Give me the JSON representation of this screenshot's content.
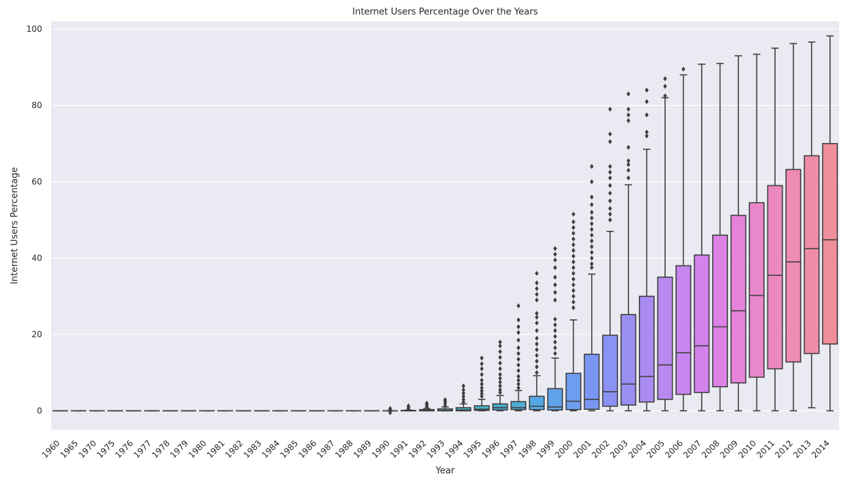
{
  "chart_data": {
    "type": "box",
    "title": "Internet Users Percentage Over the Years",
    "xlabel": "Year",
    "ylabel": "Internet Users Percentage",
    "ylim": [
      -5,
      102
    ],
    "yticks": [
      0,
      20,
      40,
      60,
      80,
      100
    ],
    "grid": true,
    "categories": [
      "1960",
      "1965",
      "1970",
      "1975",
      "1976",
      "1977",
      "1978",
      "1979",
      "1980",
      "1981",
      "1982",
      "1983",
      "1984",
      "1985",
      "1986",
      "1987",
      "1988",
      "1989",
      "1990",
      "1991",
      "1992",
      "1993",
      "1994",
      "1995",
      "1996",
      "1997",
      "1998",
      "1999",
      "2000",
      "2001",
      "2002",
      "2003",
      "2004",
      "2005",
      "2006",
      "2007",
      "2008",
      "2009",
      "2010",
      "2011",
      "2012",
      "2013",
      "2014"
    ],
    "colors": [
      "#f08f9c",
      "#f0909b",
      "#f1929a",
      "#f19299",
      "#f29398",
      "#f29596",
      "#f19794",
      "#f09a92",
      "#ed9e8e",
      "#e9a388",
      "#e2a87f",
      "#d9ad74",
      "#cdb26a",
      "#c0b562",
      "#b2b85a",
      "#a4bb54",
      "#94be4f",
      "#83c04e",
      "#4ab58b",
      "#4bb599",
      "#4db6a6",
      "#4ab5b2",
      "#48b3bd",
      "#47b1c6",
      "#4aafd0",
      "#4eacd9",
      "#55a8e2",
      "#60a3e9",
      "#6d9df0",
      "#7b97f3",
      "#8a92f4",
      "#9a8ef3",
      "#aa8bf2",
      "#b889f0",
      "#c686ee",
      "#d283eb",
      "#dd82e5",
      "#e583da",
      "#e987cc",
      "#ec89bf",
      "#ee8bb2",
      "#ef8da8",
      "#f08f9c"
    ],
    "boxes": [
      {
        "year": "1960",
        "min": 0,
        "q1": 0,
        "median": 0,
        "q3": 0,
        "max": 0,
        "outliers": []
      },
      {
        "year": "1965",
        "min": 0,
        "q1": 0,
        "median": 0,
        "q3": 0,
        "max": 0,
        "outliers": []
      },
      {
        "year": "1970",
        "min": 0,
        "q1": 0,
        "median": 0,
        "q3": 0,
        "max": 0,
        "outliers": []
      },
      {
        "year": "1975",
        "min": 0,
        "q1": 0,
        "median": 0,
        "q3": 0,
        "max": 0,
        "outliers": []
      },
      {
        "year": "1976",
        "min": 0,
        "q1": 0,
        "median": 0,
        "q3": 0,
        "max": 0,
        "outliers": []
      },
      {
        "year": "1977",
        "min": 0,
        "q1": 0,
        "median": 0,
        "q3": 0,
        "max": 0,
        "outliers": []
      },
      {
        "year": "1978",
        "min": 0,
        "q1": 0,
        "median": 0,
        "q3": 0,
        "max": 0,
        "outliers": []
      },
      {
        "year": "1979",
        "min": 0,
        "q1": 0,
        "median": 0,
        "q3": 0,
        "max": 0,
        "outliers": []
      },
      {
        "year": "1980",
        "min": 0,
        "q1": 0,
        "median": 0,
        "q3": 0,
        "max": 0,
        "outliers": []
      },
      {
        "year": "1981",
        "min": 0,
        "q1": 0,
        "median": 0,
        "q3": 0,
        "max": 0,
        "outliers": []
      },
      {
        "year": "1982",
        "min": 0,
        "q1": 0,
        "median": 0,
        "q3": 0,
        "max": 0,
        "outliers": []
      },
      {
        "year": "1983",
        "min": 0,
        "q1": 0,
        "median": 0,
        "q3": 0,
        "max": 0,
        "outliers": []
      },
      {
        "year": "1984",
        "min": 0,
        "q1": 0,
        "median": 0,
        "q3": 0,
        "max": 0,
        "outliers": []
      },
      {
        "year": "1985",
        "min": 0,
        "q1": 0,
        "median": 0,
        "q3": 0,
        "max": 0,
        "outliers": []
      },
      {
        "year": "1986",
        "min": 0,
        "q1": 0,
        "median": 0,
        "q3": 0,
        "max": 0,
        "outliers": []
      },
      {
        "year": "1987",
        "min": 0,
        "q1": 0,
        "median": 0,
        "q3": 0,
        "max": 0,
        "outliers": []
      },
      {
        "year": "1988",
        "min": 0,
        "q1": 0,
        "median": 0,
        "q3": 0,
        "max": 0,
        "outliers": []
      },
      {
        "year": "1989",
        "min": 0,
        "q1": 0,
        "median": 0,
        "q3": 0,
        "max": 0,
        "outliers": []
      },
      {
        "year": "1990",
        "min": 0,
        "q1": 0,
        "median": 0,
        "q3": 0,
        "max": 0,
        "outliers": [
          0.3,
          0.6,
          -0.5
        ]
      },
      {
        "year": "1991",
        "min": 0,
        "q1": 0,
        "median": 0,
        "q3": 0.1,
        "max": 0.2,
        "outliers": [
          0.5,
          0.9,
          1.3
        ]
      },
      {
        "year": "1992",
        "min": 0,
        "q1": 0,
        "median": 0.1,
        "q3": 0.3,
        "max": 0.6,
        "outliers": [
          0.9,
          1.3,
          1.7,
          2.0
        ]
      },
      {
        "year": "1993",
        "min": 0,
        "q1": 0,
        "median": 0.1,
        "q3": 0.5,
        "max": 1.0,
        "outliers": [
          1.4,
          2.0,
          2.5,
          2.9
        ]
      },
      {
        "year": "1994",
        "min": 0,
        "q1": 0,
        "median": 0.2,
        "q3": 0.8,
        "max": 1.8,
        "outliers": [
          2.3,
          3.0,
          3.8,
          4.6,
          5.5,
          6.5
        ]
      },
      {
        "year": "1995",
        "min": 0,
        "q1": 0.1,
        "median": 0.4,
        "q3": 1.3,
        "max": 3.0,
        "outliers": [
          3.8,
          4.5,
          5.2,
          6.0,
          7.0,
          8.0,
          9.5,
          11.0,
          12.3,
          13.8
        ]
      },
      {
        "year": "1996",
        "min": 0,
        "q1": 0.2,
        "median": 0.8,
        "q3": 1.8,
        "max": 4.0,
        "outliers": [
          4.8,
          5.5,
          6.5,
          7.5,
          8.5,
          9.5,
          11.0,
          12.5,
          14.0,
          15.5,
          17.0,
          18.0
        ]
      },
      {
        "year": "1997",
        "min": 0,
        "q1": 0.3,
        "median": 0.8,
        "q3": 2.4,
        "max": 5.3,
        "outliers": [
          6.0,
          7.0,
          8.0,
          9.0,
          10.5,
          12.0,
          13.5,
          15.0,
          16.5,
          18.5,
          20.5,
          22.0,
          23.8,
          27.5
        ]
      },
      {
        "year": "1998",
        "min": 0,
        "q1": 0.3,
        "median": 1.2,
        "q3": 3.8,
        "max": 9.2,
        "outliers": [
          10.0,
          11.5,
          13.0,
          14.5,
          16.0,
          17.5,
          19.0,
          21.0,
          23.0,
          24.5,
          25.5,
          29.0,
          30.5,
          32.0,
          33.5,
          36.0
        ]
      },
      {
        "year": "1999",
        "min": 0,
        "q1": 0.2,
        "median": 1.0,
        "q3": 5.8,
        "max": 13.8,
        "outliers": [
          15.0,
          16.5,
          18.0,
          19.5,
          21.0,
          22.5,
          24.0,
          29.0,
          31.0,
          33.0,
          35.0,
          37.5,
          39.5,
          41.0,
          42.5
        ]
      },
      {
        "year": "2000",
        "min": 0,
        "q1": 0.3,
        "median": 2.5,
        "q3": 9.8,
        "max": 23.8,
        "outliers": [
          27.0,
          28.5,
          30.0,
          31.5,
          33.0,
          34.5,
          36.0,
          37.5,
          39.0,
          40.5,
          42.0,
          43.5,
          45.0,
          46.5,
          48.0,
          49.5,
          51.5
        ]
      },
      {
        "year": "2001",
        "min": 0,
        "q1": 0.4,
        "median": 3.0,
        "q3": 14.8,
        "max": 35.8,
        "outliers": [
          37.5,
          38.5,
          40.0,
          41.5,
          43.0,
          44.5,
          46.0,
          47.5,
          49.0,
          50.5,
          52.0,
          54.0,
          56.0,
          60.0,
          64.0
        ]
      },
      {
        "year": "2002",
        "min": 0,
        "q1": 1.2,
        "median": 5.0,
        "q3": 19.8,
        "max": 47.0,
        "outliers": [
          50.0,
          51.5,
          53.0,
          55.0,
          57.0,
          59.0,
          61.0,
          62.5,
          64.0,
          70.5,
          72.5,
          79.0
        ]
      },
      {
        "year": "2003",
        "min": 0,
        "q1": 1.5,
        "median": 7.0,
        "q3": 25.2,
        "max": 59.2,
        "outliers": [
          61.0,
          63.0,
          64.5,
          65.5,
          69.0,
          76.0,
          77.5,
          79.0,
          83.0
        ]
      },
      {
        "year": "2004",
        "min": 0,
        "q1": 2.3,
        "median": 9.0,
        "q3": 30.0,
        "max": 68.5,
        "outliers": [
          72.0,
          73.0,
          77.5,
          81.0,
          84.0
        ]
      },
      {
        "year": "2005",
        "min": 0,
        "q1": 3.0,
        "median": 12.0,
        "q3": 35.0,
        "max": 82.0,
        "outliers": [
          82.5,
          85.0,
          87.0
        ]
      },
      {
        "year": "2006",
        "min": 0,
        "q1": 4.3,
        "median": 15.2,
        "q3": 38.0,
        "max": 88.0,
        "outliers": [
          89.5
        ]
      },
      {
        "year": "2007",
        "min": 0,
        "q1": 4.8,
        "median": 17.0,
        "q3": 40.8,
        "max": 90.8,
        "outliers": []
      },
      {
        "year": "2008",
        "min": 0,
        "q1": 6.3,
        "median": 22.0,
        "q3": 46.0,
        "max": 91.0,
        "outliers": []
      },
      {
        "year": "2009",
        "min": 0,
        "q1": 7.3,
        "median": 26.2,
        "q3": 51.2,
        "max": 93.0,
        "outliers": []
      },
      {
        "year": "2010",
        "min": 0,
        "q1": 8.8,
        "median": 30.2,
        "q3": 54.5,
        "max": 93.4,
        "outliers": []
      },
      {
        "year": "2011",
        "min": 0,
        "q1": 11.0,
        "median": 35.5,
        "q3": 59.0,
        "max": 95.0,
        "outliers": []
      },
      {
        "year": "2012",
        "min": 0,
        "q1": 12.8,
        "median": 39.0,
        "q3": 63.2,
        "max": 96.2,
        "outliers": []
      },
      {
        "year": "2013",
        "min": 0.8,
        "q1": 15.0,
        "median": 42.5,
        "q3": 66.8,
        "max": 96.6,
        "outliers": []
      },
      {
        "year": "2014",
        "min": 0,
        "q1": 17.5,
        "median": 44.8,
        "q3": 70.0,
        "max": 98.2,
        "outliers": []
      }
    ]
  }
}
